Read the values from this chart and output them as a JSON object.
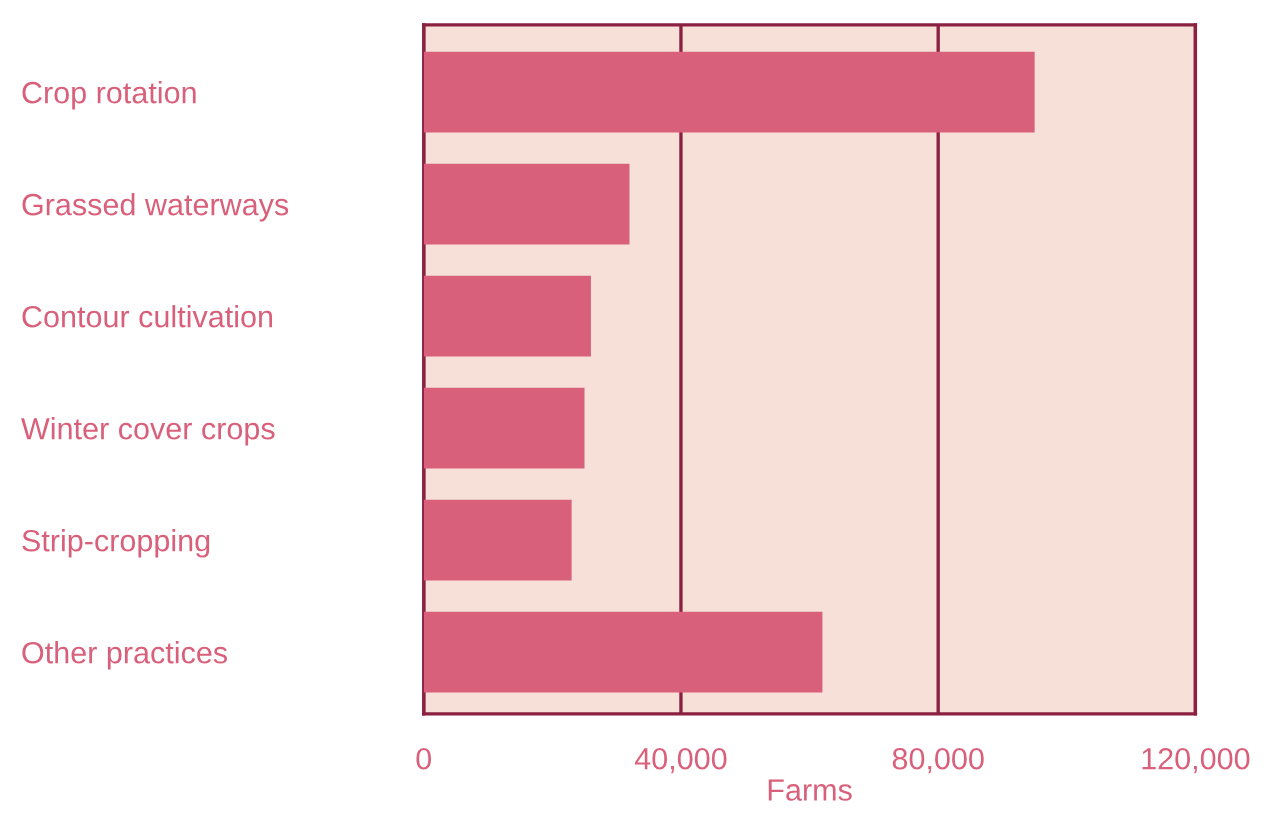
{
  "chart_data": {
    "type": "bar",
    "orientation": "horizontal",
    "xlabel": "Farms",
    "categories": [
      "Crop rotation",
      "Grassed waterways",
      "Contour cultivation",
      "Winter cover crops",
      "Strip-cropping",
      "Other practices"
    ],
    "values": [
      95000,
      32000,
      26000,
      25000,
      23000,
      62000
    ],
    "color": "#d9607a",
    "xlim": [
      0,
      120000
    ],
    "xticks": [
      0,
      {
        "value": 40000,
        "label": "40,000"
      },
      {
        "value": 80000,
        "label": "80,000"
      },
      {
        "value": 120000,
        "label": "120,000"
      }
    ],
    "grid": "x"
  }
}
